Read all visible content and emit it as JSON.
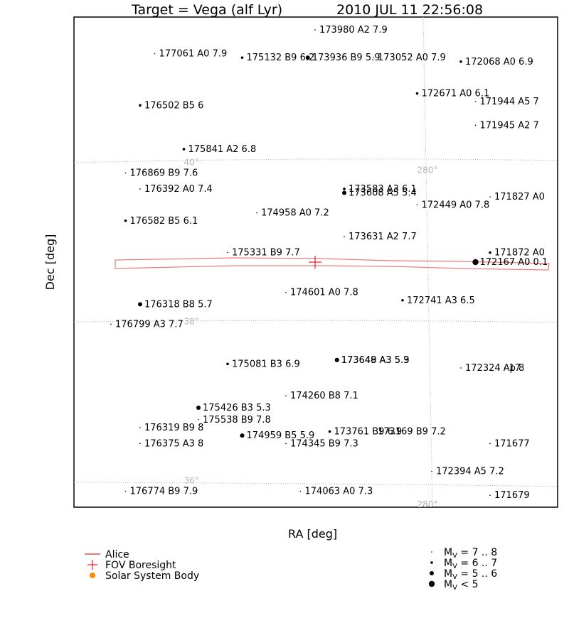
{
  "chart_data": {
    "type": "scatter",
    "title": "Target = Vega (alf Lyr)",
    "timestamp": "2010 JUL 11 22:56:08",
    "xlabel": "RA [deg]",
    "ylabel": "Dec [deg]",
    "colors": {
      "fov": "#f07a7a",
      "boresight": "#e02020",
      "solar_system": "#ff8c00",
      "grid": "#b4b4b4",
      "stars": "#000000"
    },
    "grid_labels": {
      "ra": [
        {
          "label": "280°",
          "ra": 280,
          "dec": 39.9
        },
        {
          "label": "280°",
          "ra": 280,
          "dec": 35.7
        }
      ],
      "dec": [
        {
          "label": "40°",
          "ra": 281.6,
          "dec": 40
        },
        {
          "label": "40°",
          "ra": 278.5,
          "dec": 40
        },
        {
          "label": "38°",
          "ra": 281.6,
          "dec": 38
        },
        {
          "label": "38°",
          "ra": 278.5,
          "dec": 38
        },
        {
          "label": "36°",
          "ra": 281.6,
          "dec": 36
        },
        {
          "label": "36°",
          "ra": 278.5,
          "dec": 36
        }
      ]
    },
    "stars": [
      {
        "hd": "173980",
        "type": "A2",
        "mag": 7.9,
        "ra": 280.7,
        "dec": 41.7,
        "label": "173980 A2 7.9"
      },
      {
        "hd": "177061",
        "type": "A0",
        "mag": 7.9,
        "ra": 281.8,
        "dec": 41.4,
        "label": "177061 A0 7.9"
      },
      {
        "hd": "175132",
        "type": "B9",
        "mag": 6.2,
        "ra": 281.2,
        "dec": 41.35,
        "label": "175132 B9 6.2"
      },
      {
        "hd": "173936",
        "type": "B9",
        "mag": 5.9,
        "ra": 280.75,
        "dec": 41.35,
        "label": "173936 B9 5.9"
      },
      {
        "hd": "173052",
        "type": "A0",
        "mag": 7.9,
        "ra": 280.3,
        "dec": 41.35,
        "label": "173052 A0 7.9"
      },
      {
        "hd": "172068",
        "type": "A0",
        "mag": 6.9,
        "ra": 279.7,
        "dec": 41.3,
        "label": "172068 A0 6.9"
      },
      {
        "hd": "172671",
        "type": "A0",
        "mag": 6.1,
        "ra": 280.0,
        "dec": 40.9,
        "label": "172671 A0 6.1"
      },
      {
        "hd": "176502",
        "type": "B5",
        "mag": 6.0,
        "ra": 281.9,
        "dec": 40.75,
        "label": "176502 B5 6"
      },
      {
        "hd": "171944",
        "type": "A5",
        "mag": 7.0,
        "ra": 279.6,
        "dec": 40.8,
        "label": "171944 A5 7"
      },
      {
        "hd": "171945",
        "type": "A2",
        "mag": 7.0,
        "ra": 279.6,
        "dec": 40.5,
        "label": "171945 A2 7"
      },
      {
        "hd": "175841",
        "type": "A2",
        "mag": 6.8,
        "ra": 281.6,
        "dec": 40.2,
        "label": "175841 A2 6.8"
      },
      {
        "hd": "176869",
        "type": "B9",
        "mag": 7.6,
        "ra": 282.0,
        "dec": 39.9,
        "label": "176869 B9 7.6"
      },
      {
        "hd": "176392",
        "type": "A0",
        "mag": 7.4,
        "ra": 281.9,
        "dec": 39.7,
        "label": "176392 A0 7.4"
      },
      {
        "hd": "173583",
        "type": "A3",
        "mag": 6.1,
        "ra": 280.5,
        "dec": 39.7,
        "label": "173583 A3 6.1"
      },
      {
        "hd": "173608",
        "type": "A5",
        "mag": 5.4,
        "ra": 280.5,
        "dec": 39.65,
        "label": "173608 A5 5.4"
      },
      {
        "hd": "171827",
        "type": "A0",
        "mag": 7.0,
        "ra": 279.5,
        "dec": 39.6,
        "label": "171827 A0"
      },
      {
        "hd": "172449",
        "type": "A0",
        "mag": 7.8,
        "ra": 280.0,
        "dec": 39.5,
        "label": "172449 A0 7.8"
      },
      {
        "hd": "174958",
        "type": "A0",
        "mag": 7.2,
        "ra": 281.1,
        "dec": 39.4,
        "label": "174958 A0 7.2"
      },
      {
        "hd": "176582",
        "type": "B5",
        "mag": 6.1,
        "ra": 282.0,
        "dec": 39.3,
        "label": "176582 B5 6.1"
      },
      {
        "hd": "173631",
        "type": "A2",
        "mag": 7.7,
        "ra": 280.5,
        "dec": 39.1,
        "label": "173631 A2 7.7"
      },
      {
        "hd": "175331",
        "type": "B9",
        "mag": 7.7,
        "ra": 281.3,
        "dec": 38.9,
        "label": "175331 B9 7.7"
      },
      {
        "hd": "171872",
        "type": "A0",
        "mag": 6.5,
        "ra": 279.5,
        "dec": 38.9,
        "label": "171872 A0"
      },
      {
        "hd": "172167",
        "type": "A0",
        "mag": 0.1,
        "ra": 279.6,
        "dec": 38.78,
        "label": "172167 A0 0.1"
      },
      {
        "hd": "174601",
        "type": "A0",
        "mag": 7.8,
        "ra": 280.9,
        "dec": 38.4,
        "label": "174601 A0 7.8"
      },
      {
        "hd": "172741",
        "type": "A3",
        "mag": 6.5,
        "ra": 280.1,
        "dec": 38.3,
        "label": "172741 A3 6.5"
      },
      {
        "hd": "176318",
        "type": "B8",
        "mag": 5.7,
        "ra": 281.9,
        "dec": 38.25,
        "label": "176318 B8 5.7"
      },
      {
        "hd": "176799",
        "type": "A3",
        "mag": 7.7,
        "ra": 282.1,
        "dec": 38.0,
        "label": "176799 A3 7.7"
      },
      {
        "hd": "173648",
        "type": "A3",
        "mag": 5.3,
        "ra": 280.55,
        "dec": 37.55,
        "label": "173648 A3 5.3"
      },
      {
        "hd": "173649",
        "type": "A3",
        "mag": 5.9,
        "ra": 280.55,
        "dec": 37.55,
        "label": "173649 A3 5.9"
      },
      {
        "hd": "175081",
        "type": "B3",
        "mag": 6.9,
        "ra": 281.3,
        "dec": 37.5,
        "label": "175081 B3 6.9"
      },
      {
        "hd": "172324",
        "type": "Ap",
        "mag": 8.0,
        "ra": 279.7,
        "dec": 37.45,
        "label": "172324 Ap 8"
      },
      {
        "hd": "17",
        "type": "",
        "mag": 7.5,
        "ra": 279.4,
        "dec": 37.45,
        "label": "17"
      },
      {
        "hd": "174260",
        "type": "B8",
        "mag": 7.1,
        "ra": 280.9,
        "dec": 37.1,
        "label": "174260 B8 7.1"
      },
      {
        "hd": "175426",
        "type": "B3",
        "mag": 5.3,
        "ra": 281.5,
        "dec": 36.95,
        "label": "175426 B3 5.3"
      },
      {
        "hd": "175538",
        "type": "B9",
        "mag": 7.8,
        "ra": 281.5,
        "dec": 36.8,
        "label": "175538 B9 7.8"
      },
      {
        "hd": "176319",
        "type": "B9",
        "mag": 8.0,
        "ra": 281.9,
        "dec": 36.7,
        "label": "176319 B9 8"
      },
      {
        "hd": "173761",
        "type": "B9",
        "mag": 6.9,
        "ra": 280.6,
        "dec": 36.65,
        "label": "173761 B9 6.9"
      },
      {
        "hd": "173169",
        "type": "B9",
        "mag": 7.2,
        "ra": 280.3,
        "dec": 36.65,
        "label": "173169 B9 7.2"
      },
      {
        "hd": "174959",
        "type": "B5",
        "mag": 5.9,
        "ra": 281.2,
        "dec": 36.6,
        "label": "174959 B5 5.9"
      },
      {
        "hd": "176375",
        "type": "A3",
        "mag": 8.0,
        "ra": 281.9,
        "dec": 36.5,
        "label": "176375 A3 8"
      },
      {
        "hd": "174345",
        "type": "B9",
        "mag": 7.3,
        "ra": 280.9,
        "dec": 36.5,
        "label": "174345 B9 7.3"
      },
      {
        "hd": "171677",
        "type": "",
        "mag": 7.5,
        "ra": 279.5,
        "dec": 36.5,
        "label": "171677"
      },
      {
        "hd": "172394",
        "type": "A5",
        "mag": 7.2,
        "ra": 279.9,
        "dec": 36.15,
        "label": "172394 A5 7.2"
      },
      {
        "hd": "176774",
        "type": "B9",
        "mag": 7.9,
        "ra": 282.0,
        "dec": 35.9,
        "label": "176774 B9 7.9"
      },
      {
        "hd": "174063",
        "type": "A0",
        "mag": 7.3,
        "ra": 280.8,
        "dec": 35.9,
        "label": "174063 A0 7.3"
      },
      {
        "hd": "171679",
        "type": "",
        "mag": 7.5,
        "ra": 279.5,
        "dec": 35.85,
        "label": "171679"
      }
    ],
    "fov": {
      "name": "Alice",
      "boresight_ra": 280.7,
      "boresight_dec": 38.78
    }
  },
  "legend": {
    "items": [
      {
        "key": "fov",
        "label": "Alice"
      },
      {
        "key": "boresight",
        "label": "FOV Boresight"
      },
      {
        "key": "solar_system",
        "label": "Solar System Body"
      }
    ],
    "magnitudes": [
      {
        "range": "7 .. 8"
      },
      {
        "range": "6 .. 7"
      },
      {
        "range": "5 .. 6"
      },
      {
        "range": "< 5"
      }
    ],
    "mag_prefix": "M",
    "mag_sub": "V",
    "mag_equals": "= ",
    "mag_less": ""
  }
}
